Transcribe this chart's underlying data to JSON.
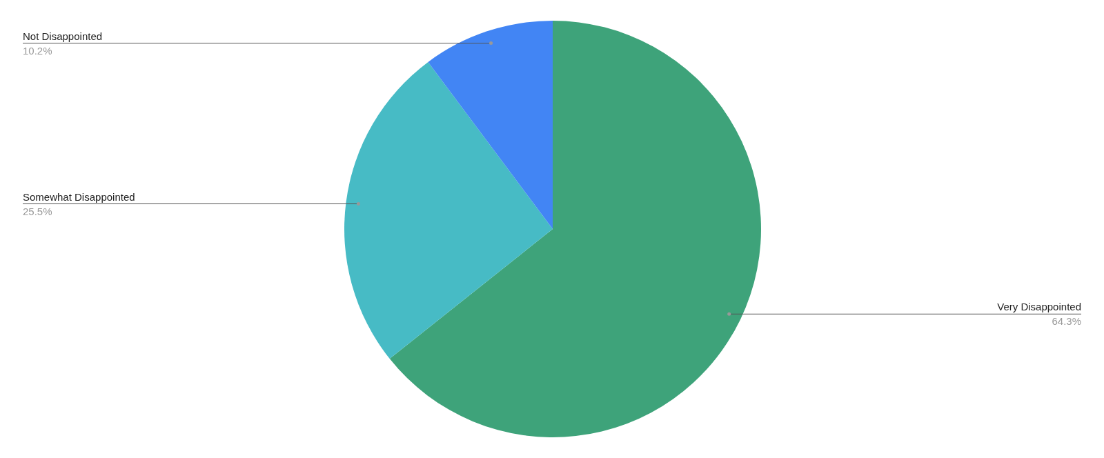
{
  "chart_data": {
    "type": "pie",
    "categories": [
      "Very Disappointed",
      "Somewhat Disappointed",
      "Not Disappointed"
    ],
    "values": [
      64.3,
      25.5,
      10.2
    ],
    "colors": [
      "#3ea37a",
      "#47bbc5",
      "#4285f4"
    ],
    "value_labels": [
      "64.3%",
      "25.5%",
      "10.2%"
    ],
    "legend": false
  }
}
